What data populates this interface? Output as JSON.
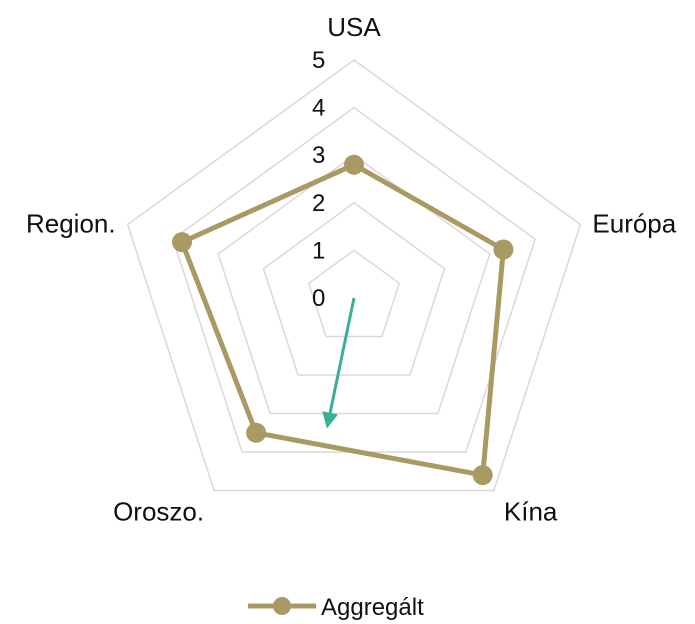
{
  "chart_data": {
    "type": "radar",
    "categories": [
      "USA",
      "Európa",
      "Kína",
      "Oroszo.",
      "Region."
    ],
    "series": [
      {
        "name": "Aggregált",
        "values": [
          2.8,
          3.3,
          4.6,
          3.5,
          3.8
        ],
        "color": "#A99A63"
      }
    ],
    "rlim": [
      0,
      5
    ],
    "ticks": [
      "0",
      "1",
      "2",
      "3",
      "4",
      "5"
    ],
    "grid": true,
    "gridColor": "#D9D9D9",
    "legend": "bottom",
    "annotation": {
      "type": "arrow",
      "color": "#3AAE96",
      "from_value": 0,
      "to_value": 2.8,
      "direction_between": [
        "Kína",
        "Oroszo."
      ]
    }
  }
}
